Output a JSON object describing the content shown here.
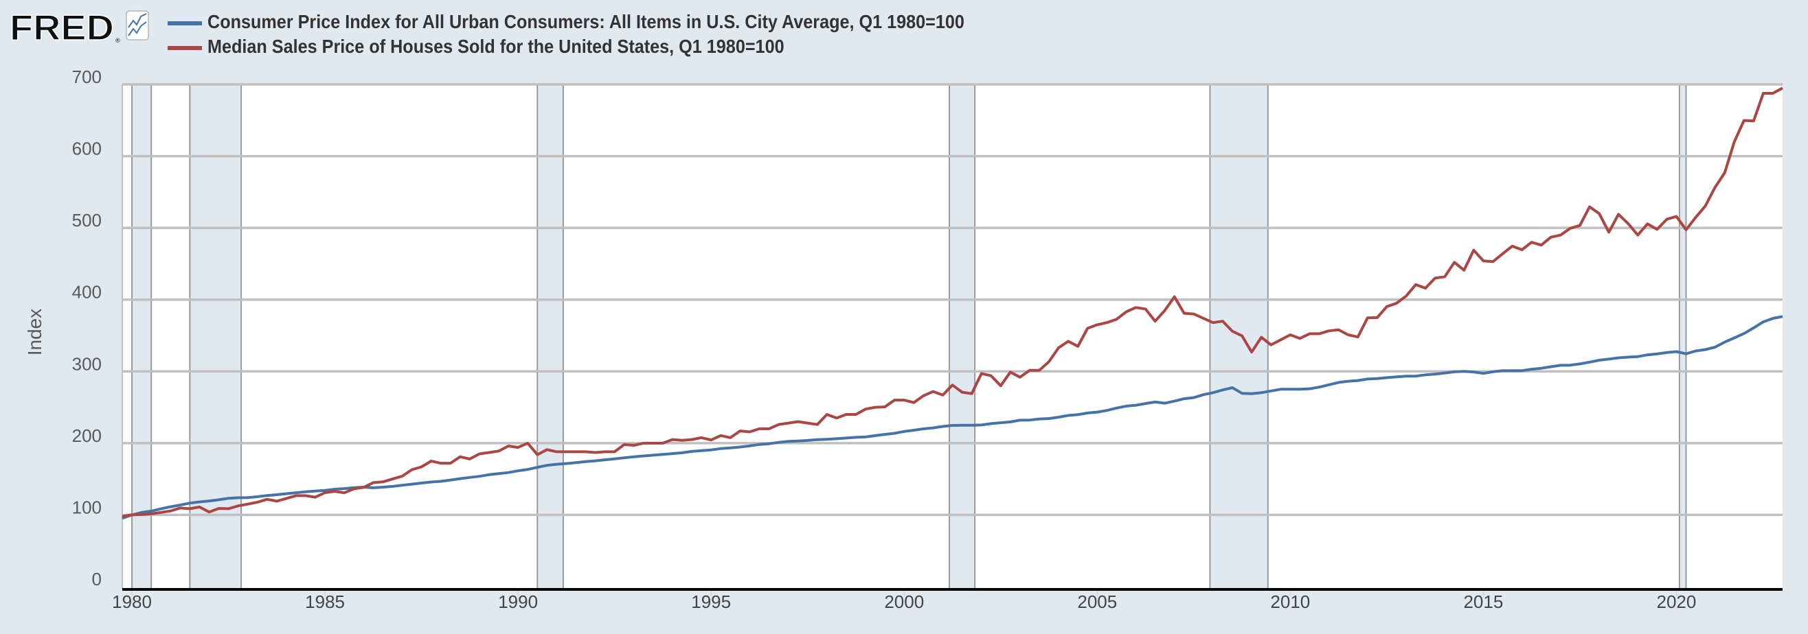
{
  "brand": {
    "logo_text": "FRED"
  },
  "chart_data": {
    "type": "line",
    "title": "",
    "xlabel": "",
    "ylabel": "Index",
    "ylim": [
      0,
      700
    ],
    "yticks": [
      "0",
      "100",
      "200",
      "300",
      "400",
      "500",
      "600",
      "700"
    ],
    "xticks": [
      "1980",
      "1985",
      "1990",
      "1995",
      "2000",
      "2005",
      "2010",
      "2015",
      "2020"
    ],
    "xlim": [
      "1979-10-01",
      "2022-10-01"
    ],
    "grid": true,
    "legend_position": "top",
    "recessions": [
      [
        1980.0,
        1980.5
      ],
      [
        1981.5,
        1982.83
      ],
      [
        1990.5,
        1991.17
      ],
      [
        2001.17,
        2001.83
      ],
      [
        2007.92,
        2009.42
      ],
      [
        2020.08,
        2020.25
      ]
    ],
    "series": [
      {
        "name": "Consumer Price Index for All Urban Consumers: All Items in U.S. City Average, Q1 1980=100",
        "color": "#4572a7",
        "start": "1979-10-01",
        "frequency": "Quarterly",
        "values": [
          95.3,
          100,
          103.4,
          105.3,
          108.4,
          111.3,
          113.7,
          116.5,
          118.1,
          119.4,
          121.1,
          123.2,
          123.9,
          124.1,
          125.4,
          127.0,
          128.1,
          129.6,
          130.9,
          132.3,
          133.3,
          134.2,
          135.8,
          136.7,
          138.0,
          138.7,
          137.8,
          138.7,
          139.7,
          141.3,
          142.9,
          144.4,
          145.8,
          146.8,
          148.6,
          150.5,
          152.2,
          153.8,
          156.1,
          157.5,
          159.0,
          161.4,
          163.3,
          166.3,
          169.1,
          170.6,
          171.6,
          172.9,
          174.3,
          175.4,
          176.8,
          178.1,
          179.6,
          180.9,
          182.2,
          183.2,
          184.4,
          185.4,
          186.6,
          188.5,
          189.5,
          190.6,
          192.4,
          193.4,
          194.6,
          196.2,
          198.1,
          199.2,
          201.1,
          202.4,
          203.0,
          203.8,
          204.9,
          205.4,
          206.2,
          207.1,
          208.1,
          208.7,
          210.5,
          212.2,
          213.7,
          216.3,
          218.0,
          219.9,
          221.3,
          223.3,
          224.7,
          224.9,
          224.9,
          225.3,
          227.2,
          228.5,
          229.6,
          232.0,
          232.2,
          233.7,
          234.3,
          236.2,
          238.6,
          239.7,
          242.0,
          243.3,
          245.6,
          248.9,
          251.6,
          252.8,
          255.2,
          257.3,
          255.7,
          258.6,
          261.9,
          263.5,
          267.6,
          270.3,
          274.2,
          277.3,
          269.5,
          268.9,
          270.3,
          272.7,
          275.1,
          275.2,
          275.1,
          275.8,
          278.1,
          281.3,
          284.6,
          286.3,
          287.3,
          289.4,
          289.9,
          291.3,
          292.4,
          293.3,
          293.5,
          295.2,
          296.2,
          297.8,
          299.4,
          300.1,
          299.2,
          297.3,
          299.5,
          300.9,
          301.0,
          301.0,
          303.0,
          304.4,
          306.5,
          308.5,
          308.7,
          310.4,
          312.9,
          315.6,
          317.2,
          318.9,
          319.9,
          320.6,
          323.0,
          324.4,
          326.3,
          327.5,
          324.6,
          328.5,
          330.4,
          333.7,
          340.8,
          346.7,
          352.8,
          360.6,
          369.0,
          373.9,
          376.5
        ]
      },
      {
        "name": "Median Sales Price of Houses Sold for the United States, Q1 1980=100",
        "color": "#aa4643",
        "start": "1979-10-01",
        "frequency": "Quarterly",
        "values": [
          98,
          100,
          100.5,
          101.5,
          103.5,
          105.5,
          109.6,
          108.6,
          111,
          104,
          109,
          108.6,
          112.6,
          115,
          117.7,
          121.7,
          119.2,
          123,
          126.8,
          126.8,
          124.7,
          131,
          132.8,
          130.8,
          136.4,
          138.4,
          145,
          146,
          150,
          154,
          163,
          167,
          175,
          172,
          172,
          181,
          178,
          185,
          187,
          189,
          196,
          194,
          200,
          184,
          191,
          188,
          188,
          188,
          188,
          187,
          188,
          188,
          198,
          197,
          200,
          200,
          200,
          205,
          204,
          205,
          207.6,
          204.5,
          210.6,
          207.6,
          217,
          215.7,
          220,
          220,
          226,
          228,
          230,
          228,
          226,
          240,
          235,
          240,
          240,
          247.5,
          250,
          250.5,
          260,
          260,
          256.6,
          266,
          272,
          267,
          281,
          271,
          269,
          297,
          294,
          280,
          299,
          292,
          301.5,
          301.5,
          313.6,
          333,
          342,
          335,
          360,
          365,
          368,
          372.7,
          383,
          389,
          387,
          370,
          385,
          404,
          381,
          380,
          374,
          368,
          370,
          356,
          349.5,
          327,
          347.5,
          337,
          344,
          351,
          346,
          352.5,
          352.5,
          356.5,
          358,
          351,
          348,
          374.6,
          375,
          390.4,
          394.9,
          405,
          421,
          416,
          430,
          432,
          452,
          441,
          469,
          454,
          453,
          464,
          474.6,
          469.5,
          480,
          476,
          487,
          490,
          499.4,
          503.4,
          529.4,
          520,
          494,
          519,
          506,
          490,
          505.6,
          498,
          512,
          516,
          497.5,
          514.7,
          530.5,
          556.5,
          576.7,
          620,
          649.7,
          649,
          687.6,
          687.6,
          695
        ]
      }
    ]
  }
}
